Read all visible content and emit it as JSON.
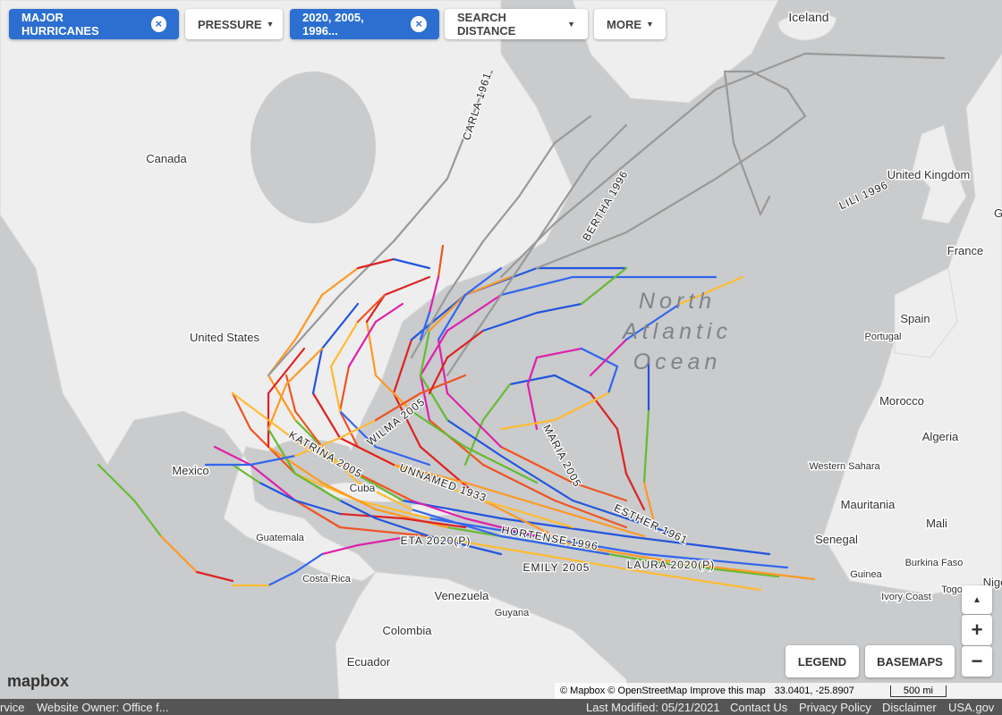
{
  "filters": [
    {
      "label": "MAJOR HURRICANES",
      "active": true
    },
    {
      "label": "PRESSURE",
      "active": false
    },
    {
      "label": "2020, 2005, 1996...",
      "active": true
    },
    {
      "label": "SEARCH DISTANCE",
      "active": false
    },
    {
      "label": "MORE",
      "active": false
    }
  ],
  "places": [
    "Iceland",
    "Canada",
    "United Kingdom",
    "United States",
    "France",
    "Spain",
    "Portugal",
    "Morocco",
    "Algeria",
    "Mexico",
    "Western Sahara",
    "Mauritania",
    "Mali",
    "Senegal",
    "Burkina Faso",
    "Guinea",
    "Ivory Coast",
    "Togo",
    "Cuba",
    "Guatemala",
    "Costa Rica",
    "Venezuela",
    "Guyana",
    "Colombia",
    "Ecuador",
    "G",
    "Nige"
  ],
  "ocean": [
    "North",
    "Atlantic",
    "Ocean"
  ],
  "storms": [
    "CARLA 1961",
    "BERTHA 1996",
    "LILI 1996",
    "WILMA 2005",
    "KATRINA 2005",
    "MARIA 2005",
    "UNNAMED 1933",
    "ESTHER 1961",
    "HORTENSE 1996",
    "ETA 2020(P)",
    "EMILY 2005",
    "LAURA 2020(P)"
  ],
  "controls": {
    "legend": "LEGEND",
    "basemaps": "BASEMAPS",
    "zoom_in": "+",
    "zoom_out": "−",
    "compass": "▲"
  },
  "attribution": {
    "logo": "mapbox",
    "credits": "© Mapbox © OpenStreetMap Improve this map",
    "coordinates": "33.0401, -25.8907",
    "scale": "500 mi"
  },
  "footer": {
    "left": [
      "rvice",
      "Website Owner: Office f..."
    ],
    "right": [
      "Last Modified: 05/21/2021",
      "Contact Us",
      "Privacy Policy",
      "Disclaimer",
      "USA.gov"
    ]
  }
}
